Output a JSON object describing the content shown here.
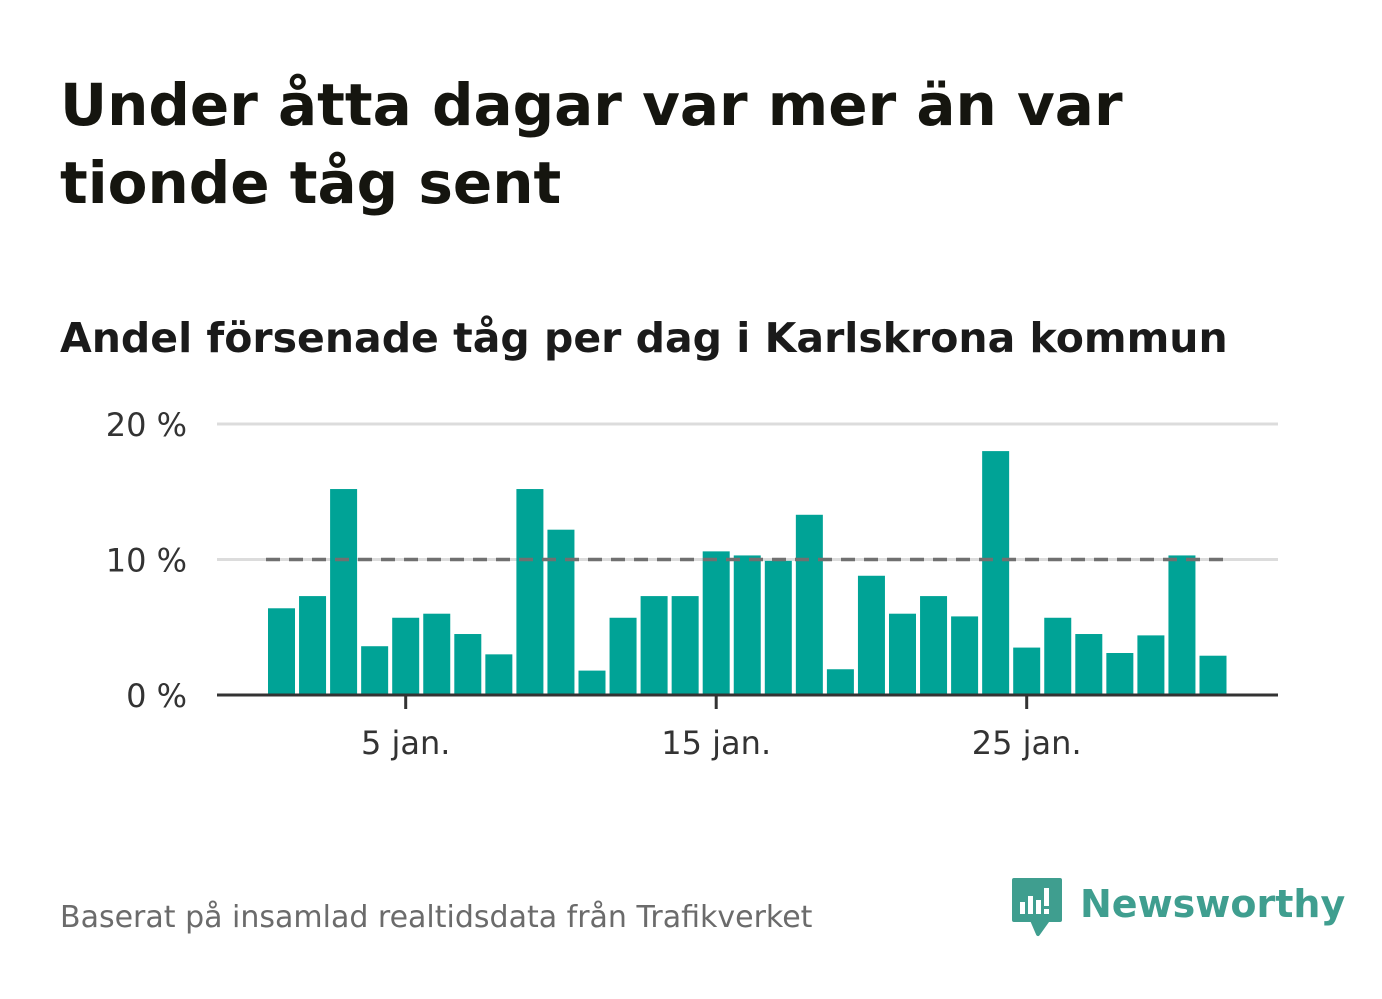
{
  "title": "Under åtta dagar var mer än var tionde tåg sent",
  "subtitle": "Andel försenade tåg per dag i Karlskrona kommun",
  "source": "Baserat på insamlad realtidsdata från Trafikverket",
  "brand": "Newsworthy",
  "colors": {
    "bar": "#00a396",
    "reference_line": "#707070",
    "grid": "#dcdcdc",
    "axis": "#333333",
    "tick_text": "#333333",
    "brand": "#3f9e8f"
  },
  "chart_data": {
    "type": "bar",
    "x": [
      1,
      2,
      3,
      4,
      5,
      6,
      7,
      8,
      9,
      10,
      11,
      12,
      13,
      14,
      15,
      16,
      17,
      18,
      19,
      20,
      21,
      22,
      23,
      24,
      25,
      26,
      27,
      28,
      29,
      30,
      31
    ],
    "values": [
      6.4,
      7.3,
      15.2,
      3.6,
      5.7,
      6.0,
      4.5,
      3.0,
      15.2,
      12.2,
      1.8,
      5.7,
      7.3,
      7.3,
      10.6,
      10.3,
      9.9,
      13.3,
      1.9,
      8.8,
      6.0,
      7.3,
      5.8,
      18.0,
      3.5,
      5.7,
      4.5,
      3.1,
      4.4,
      10.3,
      2.9
    ],
    "ylim": [
      0,
      20
    ],
    "y_ticks": [
      {
        "value": 0,
        "label": "0 %"
      },
      {
        "value": 10,
        "label": "10 %"
      },
      {
        "value": 20,
        "label": "20 %"
      }
    ],
    "x_ticks": [
      {
        "value": 5,
        "label": "5 jan."
      },
      {
        "value": 15,
        "label": "15 jan."
      },
      {
        "value": 25,
        "label": "25 jan."
      }
    ],
    "reference_line": {
      "value": 10,
      "style": "dashed"
    },
    "grid": true,
    "xlabel": "",
    "ylabel": ""
  }
}
